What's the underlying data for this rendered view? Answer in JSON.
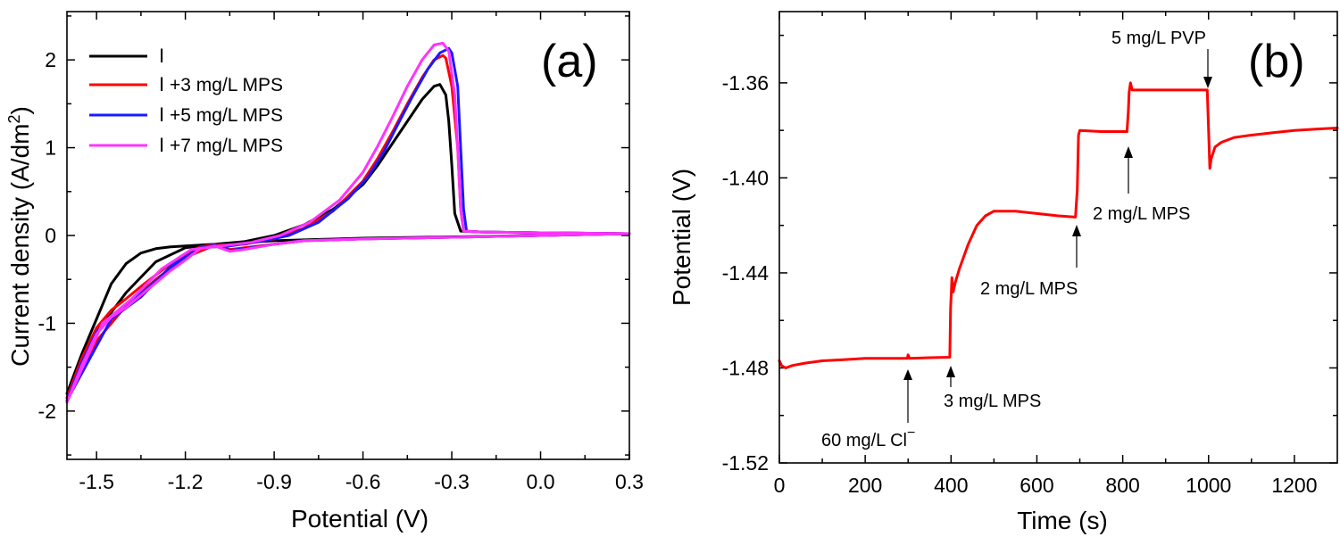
{
  "colors": {
    "black": "#000000",
    "red": "#ff0000",
    "blue": "#1a1aff",
    "magenta": "#ff33ff"
  },
  "chart_data": [
    {
      "type": "line",
      "panel_label": "(a)",
      "xlabel": "Potential (V)",
      "ylabel_main": "Current density (A/dm",
      "ylabel_sup": "2",
      "ylabel_tail": ")",
      "xlim": [
        -1.6,
        0.3
      ],
      "ylim": [
        -2.55,
        2.55
      ],
      "x_ticks": [
        {
          "value": -1.5,
          "label": "-1.5"
        },
        {
          "value": -1.2,
          "label": "-1.2"
        },
        {
          "value": -0.9,
          "label": "-0.9"
        },
        {
          "value": -0.6,
          "label": "-0.6"
        },
        {
          "value": -0.3,
          "label": "-0.3"
        },
        {
          "value": 0.0,
          "label": "0.0"
        },
        {
          "value": 0.3,
          "label": "0.3"
        }
      ],
      "y_ticks": [
        {
          "value": -2,
          "label": "-2"
        },
        {
          "value": -1,
          "label": "-1"
        },
        {
          "value": 0,
          "label": "0"
        },
        {
          "value": 1,
          "label": "1"
        },
        {
          "value": 2,
          "label": "2"
        }
      ],
      "legend_position": "top-left",
      "series": [
        {
          "name": "Ⅰ",
          "color": "#000000",
          "points": [
            [
              -1.6,
              -1.8
            ],
            [
              -1.55,
              -1.35
            ],
            [
              -1.5,
              -0.95
            ],
            [
              -1.45,
              -0.55
            ],
            [
              -1.4,
              -0.32
            ],
            [
              -1.35,
              -0.2
            ],
            [
              -1.3,
              -0.15
            ],
            [
              -1.25,
              -0.13
            ],
            [
              -1.2,
              -0.12
            ],
            [
              -1.1,
              -0.1
            ],
            [
              -1.0,
              -0.08
            ],
            [
              -0.9,
              -0.06
            ],
            [
              -0.8,
              -0.05
            ],
            [
              -0.6,
              -0.03
            ],
            [
              -0.4,
              -0.02
            ],
            [
              -0.2,
              -0.01
            ],
            [
              0.0,
              0.0
            ],
            [
              0.3,
              0.02
            ],
            [
              0.0,
              0.03
            ],
            [
              -0.2,
              0.04
            ],
            [
              -0.27,
              0.05
            ],
            [
              -0.29,
              0.25
            ],
            [
              -0.3,
              0.8
            ],
            [
              -0.31,
              1.3
            ],
            [
              -0.32,
              1.6
            ],
            [
              -0.34,
              1.72
            ],
            [
              -0.36,
              1.7
            ],
            [
              -0.4,
              1.55
            ],
            [
              -0.45,
              1.3
            ],
            [
              -0.5,
              1.05
            ],
            [
              -0.55,
              0.8
            ],
            [
              -0.6,
              0.58
            ],
            [
              -0.7,
              0.3
            ],
            [
              -0.8,
              0.12
            ],
            [
              -0.9,
              0.0
            ],
            [
              -1.0,
              -0.07
            ],
            [
              -1.1,
              -0.1
            ],
            [
              -1.2,
              -0.14
            ],
            [
              -1.3,
              -0.3
            ],
            [
              -1.4,
              -0.65
            ],
            [
              -1.5,
              -1.1
            ],
            [
              -1.6,
              -1.85
            ]
          ]
        },
        {
          "name": "Ⅰ +3 mg/L MPS",
          "color": "#ff0000",
          "points": [
            [
              -1.6,
              -1.85
            ],
            [
              -1.55,
              -1.4
            ],
            [
              -1.5,
              -1.05
            ],
            [
              -1.45,
              -0.85
            ],
            [
              -1.4,
              -0.72
            ],
            [
              -1.35,
              -0.58
            ],
            [
              -1.3,
              -0.45
            ],
            [
              -1.25,
              -0.32
            ],
            [
              -1.2,
              -0.22
            ],
            [
              -1.15,
              -0.13
            ],
            [
              -1.1,
              -0.1
            ],
            [
              -1.05,
              -0.16
            ],
            [
              -1.0,
              -0.14
            ],
            [
              -0.9,
              -0.1
            ],
            [
              -0.8,
              -0.06
            ],
            [
              -0.6,
              -0.04
            ],
            [
              -0.3,
              -0.02
            ],
            [
              0.0,
              0.0
            ],
            [
              0.3,
              0.02
            ],
            [
              0.0,
              0.03
            ],
            [
              -0.2,
              0.04
            ],
            [
              -0.26,
              0.05
            ],
            [
              -0.27,
              0.3
            ],
            [
              -0.28,
              1.0
            ],
            [
              -0.3,
              1.7
            ],
            [
              -0.32,
              2.02
            ],
            [
              -0.33,
              2.05
            ],
            [
              -0.36,
              2.0
            ],
            [
              -0.4,
              1.8
            ],
            [
              -0.45,
              1.5
            ],
            [
              -0.5,
              1.18
            ],
            [
              -0.55,
              0.88
            ],
            [
              -0.6,
              0.62
            ],
            [
              -0.7,
              0.28
            ],
            [
              -0.8,
              0.08
            ],
            [
              -0.9,
              -0.04
            ],
            [
              -1.0,
              -0.1
            ],
            [
              -1.1,
              -0.11
            ],
            [
              -1.2,
              -0.25
            ],
            [
              -1.3,
              -0.5
            ],
            [
              -1.4,
              -0.8
            ],
            [
              -1.5,
              -1.2
            ],
            [
              -1.6,
              -1.85
            ]
          ]
        },
        {
          "name": "Ⅰ +5 mg/L MPS",
          "color": "#1a1aff",
          "points": [
            [
              -1.6,
              -1.88
            ],
            [
              -1.55,
              -1.45
            ],
            [
              -1.5,
              -1.1
            ],
            [
              -1.45,
              -0.92
            ],
            [
              -1.4,
              -0.8
            ],
            [
              -1.35,
              -0.66
            ],
            [
              -1.3,
              -0.52
            ],
            [
              -1.25,
              -0.38
            ],
            [
              -1.2,
              -0.26
            ],
            [
              -1.15,
              -0.14
            ],
            [
              -1.1,
              -0.11
            ],
            [
              -1.05,
              -0.17
            ],
            [
              -1.0,
              -0.15
            ],
            [
              -0.9,
              -0.1
            ],
            [
              -0.8,
              -0.06
            ],
            [
              -0.6,
              -0.04
            ],
            [
              -0.3,
              -0.02
            ],
            [
              0.0,
              0.0
            ],
            [
              0.3,
              0.02
            ],
            [
              0.0,
              0.03
            ],
            [
              -0.2,
              0.04
            ],
            [
              -0.25,
              0.05
            ],
            [
              -0.26,
              0.3
            ],
            [
              -0.27,
              1.0
            ],
            [
              -0.28,
              1.7
            ],
            [
              -0.3,
              2.08
            ],
            [
              -0.31,
              2.13
            ],
            [
              -0.34,
              2.08
            ],
            [
              -0.38,
              1.9
            ],
            [
              -0.43,
              1.6
            ],
            [
              -0.48,
              1.28
            ],
            [
              -0.53,
              0.95
            ],
            [
              -0.58,
              0.68
            ],
            [
              -0.65,
              0.42
            ],
            [
              -0.75,
              0.15
            ],
            [
              -0.85,
              0.0
            ],
            [
              -0.95,
              -0.07
            ],
            [
              -1.05,
              -0.12
            ],
            [
              -1.15,
              -0.14
            ],
            [
              -1.25,
              -0.35
            ],
            [
              -1.35,
              -0.7
            ],
            [
              -1.45,
              -0.95
            ],
            [
              -1.6,
              -1.88
            ]
          ]
        },
        {
          "name": "Ⅰ +7 mg/L MPS",
          "color": "#ff33ff",
          "points": [
            [
              -1.6,
              -1.9
            ],
            [
              -1.55,
              -1.48
            ],
            [
              -1.5,
              -1.12
            ],
            [
              -1.45,
              -0.93
            ],
            [
              -1.4,
              -0.82
            ],
            [
              -1.35,
              -0.68
            ],
            [
              -1.3,
              -0.54
            ],
            [
              -1.25,
              -0.4
            ],
            [
              -1.2,
              -0.28
            ],
            [
              -1.15,
              -0.15
            ],
            [
              -1.1,
              -0.12
            ],
            [
              -1.05,
              -0.18
            ],
            [
              -1.0,
              -0.16
            ],
            [
              -0.9,
              -0.1
            ],
            [
              -0.8,
              -0.06
            ],
            [
              -0.6,
              -0.04
            ],
            [
              -0.3,
              -0.02
            ],
            [
              0.0,
              0.0
            ],
            [
              0.3,
              0.02
            ],
            [
              0.0,
              0.03
            ],
            [
              -0.2,
              0.04
            ],
            [
              -0.26,
              0.05
            ],
            [
              -0.27,
              0.3
            ],
            [
              -0.28,
              1.0
            ],
            [
              -0.29,
              1.6
            ],
            [
              -0.31,
              2.1
            ],
            [
              -0.33,
              2.19
            ],
            [
              -0.36,
              2.17
            ],
            [
              -0.4,
              2.0
            ],
            [
              -0.45,
              1.7
            ],
            [
              -0.5,
              1.35
            ],
            [
              -0.55,
              1.02
            ],
            [
              -0.6,
              0.72
            ],
            [
              -0.68,
              0.4
            ],
            [
              -0.78,
              0.15
            ],
            [
              -0.88,
              0.0
            ],
            [
              -0.98,
              -0.08
            ],
            [
              -1.08,
              -0.12
            ],
            [
              -1.18,
              -0.16
            ],
            [
              -1.28,
              -0.38
            ],
            [
              -1.38,
              -0.72
            ],
            [
              -1.48,
              -1.0
            ],
            [
              -1.6,
              -1.9
            ]
          ]
        }
      ]
    },
    {
      "type": "line",
      "panel_label": "(b)",
      "xlabel": "Time (s)",
      "ylabel": "Potential (V)",
      "xlim": [
        0,
        1300
      ],
      "ylim": [
        -1.52,
        -1.33
      ],
      "x_ticks": [
        {
          "value": 0,
          "label": "0"
        },
        {
          "value": 200,
          "label": "200"
        },
        {
          "value": 400,
          "label": "400"
        },
        {
          "value": 600,
          "label": "600"
        },
        {
          "value": 800,
          "label": "800"
        },
        {
          "value": 1000,
          "label": "1000"
        },
        {
          "value": 1200,
          "label": "1200"
        }
      ],
      "y_ticks": [
        {
          "value": -1.52,
          "label": "-1.52"
        },
        {
          "value": -1.48,
          "label": "-1.48"
        },
        {
          "value": -1.44,
          "label": "-1.44"
        },
        {
          "value": -1.4,
          "label": "-1.40"
        },
        {
          "value": -1.36,
          "label": "-1.36"
        }
      ],
      "series": [
        {
          "name": "potential",
          "color": "#ff0000",
          "points": [
            [
              0,
              -1.477
            ],
            [
              5,
              -1.479
            ],
            [
              15,
              -1.48
            ],
            [
              30,
              -1.479
            ],
            [
              60,
              -1.478
            ],
            [
              100,
              -1.477
            ],
            [
              150,
              -1.4765
            ],
            [
              200,
              -1.476
            ],
            [
              250,
              -1.476
            ],
            [
              298,
              -1.476
            ],
            [
              300,
              -1.4745
            ],
            [
              303,
              -1.476
            ],
            [
              350,
              -1.4757
            ],
            [
              397,
              -1.4755
            ],
            [
              399,
              -1.455
            ],
            [
              402,
              -1.442
            ],
            [
              405,
              -1.448
            ],
            [
              410,
              -1.444
            ],
            [
              420,
              -1.438
            ],
            [
              440,
              -1.428
            ],
            [
              460,
              -1.42
            ],
            [
              480,
              -1.416
            ],
            [
              500,
              -1.414
            ],
            [
              550,
              -1.414
            ],
            [
              600,
              -1.415
            ],
            [
              650,
              -1.416
            ],
            [
              690,
              -1.4165
            ],
            [
              694,
              -1.405
            ],
            [
              697,
              -1.382
            ],
            [
              700,
              -1.38
            ],
            [
              750,
              -1.3805
            ],
            [
              800,
              -1.3805
            ],
            [
              810,
              -1.3805
            ],
            [
              813,
              -1.372
            ],
            [
              815,
              -1.364
            ],
            [
              818,
              -1.36
            ],
            [
              822,
              -1.363
            ],
            [
              850,
              -1.363
            ],
            [
              900,
              -1.363
            ],
            [
              950,
              -1.363
            ],
            [
              997,
              -1.363
            ],
            [
              1000,
              -1.38
            ],
            [
              1003,
              -1.396
            ],
            [
              1006,
              -1.392
            ],
            [
              1015,
              -1.387
            ],
            [
              1030,
              -1.385
            ],
            [
              1060,
              -1.383
            ],
            [
              1100,
              -1.382
            ],
            [
              1150,
              -1.381
            ],
            [
              1200,
              -1.38
            ],
            [
              1250,
              -1.3795
            ],
            [
              1300,
              -1.379
            ]
          ]
        }
      ],
      "annotations": [
        {
          "text": "60 mg/L Cl",
          "sup": "−",
          "x": 300
        },
        {
          "text": "3 mg/L MPS",
          "x": 400
        },
        {
          "text": "2 mg/L MPS",
          "x": 697
        },
        {
          "text": "2 mg/L MPS",
          "x": 813
        },
        {
          "text": "5 mg/L PVP",
          "x": 1000
        }
      ]
    }
  ]
}
